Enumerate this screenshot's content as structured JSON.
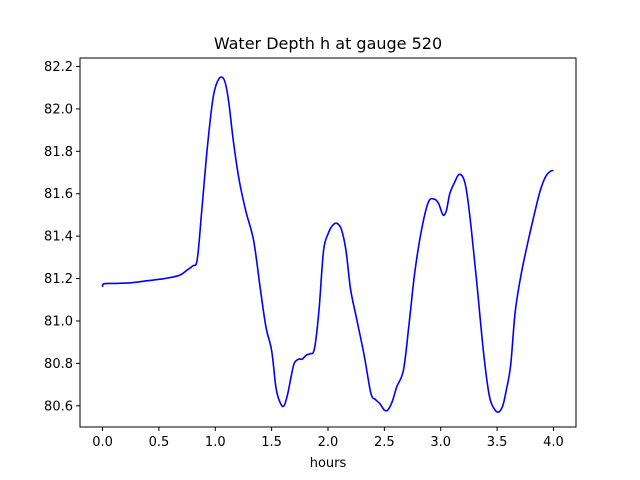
{
  "chart_data": {
    "type": "line",
    "title": "Water Depth h at gauge 520",
    "xlabel": "hours",
    "ylabel": "",
    "xlim": [
      -0.2,
      4.2
    ],
    "ylim": [
      80.5,
      82.24
    ],
    "xticks": [
      0.0,
      0.5,
      1.0,
      1.5,
      2.0,
      2.5,
      3.0,
      3.5,
      4.0
    ],
    "xtick_labels": [
      "0.0",
      "0.5",
      "1.0",
      "1.5",
      "2.0",
      "2.5",
      "3.0",
      "3.5",
      "4.0"
    ],
    "yticks": [
      80.6,
      80.8,
      81.0,
      81.2,
      81.4,
      81.6,
      81.8,
      82.0,
      82.2
    ],
    "ytick_labels": [
      "80.6",
      "80.8",
      "81.0",
      "81.2",
      "81.4",
      "81.6",
      "81.8",
      "82.0",
      "82.2"
    ],
    "grid": false,
    "legend": "none",
    "series": [
      {
        "color": "#0000ff",
        "x": [
          0.0,
          0.01,
          0.1,
          0.25,
          0.4,
          0.55,
          0.68,
          0.75,
          0.8,
          0.84,
          0.88,
          0.93,
          0.98,
          1.02,
          1.06,
          1.09,
          1.12,
          1.16,
          1.21,
          1.27,
          1.34,
          1.4,
          1.45,
          1.5,
          1.54,
          1.58,
          1.61,
          1.64,
          1.67,
          1.7,
          1.74,
          1.77,
          1.81,
          1.84,
          1.88,
          1.92,
          1.96,
          2.0,
          2.04,
          2.08,
          2.12,
          2.16,
          2.2,
          2.25,
          2.32,
          2.38,
          2.42,
          2.46,
          2.5,
          2.53,
          2.57,
          2.61,
          2.67,
          2.72,
          2.77,
          2.83,
          2.89,
          2.94,
          2.98,
          3.02,
          3.05,
          3.08,
          3.12,
          3.16,
          3.2,
          3.23,
          3.27,
          3.32,
          3.38,
          3.43,
          3.47,
          3.51,
          3.55,
          3.58,
          3.62,
          3.66,
          3.71,
          3.76,
          3.82,
          3.88,
          3.93,
          3.97,
          4.0
        ],
        "y": [
          81.16,
          81.175,
          81.177,
          81.18,
          81.19,
          81.2,
          81.215,
          81.24,
          81.26,
          81.29,
          81.52,
          81.82,
          82.05,
          82.13,
          82.15,
          82.12,
          82.03,
          81.85,
          81.67,
          81.52,
          81.38,
          81.15,
          80.97,
          80.86,
          80.68,
          80.61,
          80.6,
          80.65,
          80.73,
          80.8,
          80.82,
          80.82,
          80.84,
          80.845,
          80.87,
          81.05,
          81.33,
          81.41,
          81.45,
          81.46,
          81.43,
          81.33,
          81.15,
          81.02,
          80.84,
          80.66,
          80.63,
          80.61,
          80.58,
          80.58,
          80.62,
          80.69,
          80.77,
          80.99,
          81.23,
          81.43,
          81.56,
          81.575,
          81.555,
          81.5,
          81.52,
          81.6,
          81.65,
          81.69,
          81.675,
          81.61,
          81.44,
          81.18,
          80.85,
          80.65,
          80.59,
          80.57,
          80.6,
          80.67,
          80.79,
          81.04,
          81.21,
          81.34,
          81.48,
          81.61,
          81.68,
          81.705,
          81.71
        ]
      }
    ]
  }
}
